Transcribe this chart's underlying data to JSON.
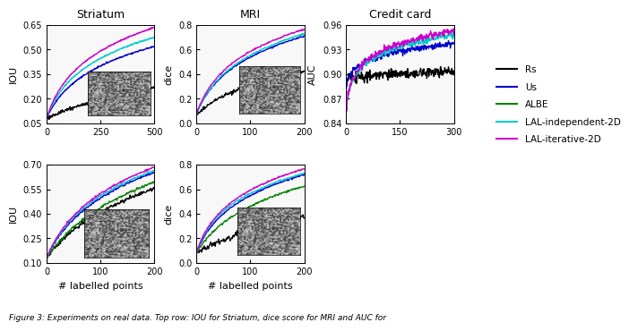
{
  "colors": {
    "Rs": "#000000",
    "Us": "#0000cc",
    "ALBE": "#008000",
    "LAL_independent": "#00cccc",
    "LAL_iterative": "#cc00cc"
  },
  "legend_labels": [
    "Rs",
    "Us",
    "ALBE",
    "LAL-independent-2D",
    "LAL-iterative-2D"
  ],
  "subplot_titles": [
    "Striatum",
    "MRI",
    "Credit card"
  ],
  "top_striatum": {
    "xlim": [
      0,
      500
    ],
    "ylim": [
      0.05,
      0.65
    ],
    "yticks": [
      0.05,
      0.2,
      0.35,
      0.5,
      0.65
    ],
    "xticks": [
      0,
      250,
      500
    ],
    "ylabel": "IOU"
  },
  "top_mri": {
    "xlim": [
      0,
      200
    ],
    "ylim": [
      0.0,
      0.8
    ],
    "yticks": [
      0.0,
      0.2,
      0.4,
      0.6,
      0.8
    ],
    "xticks": [
      0,
      100,
      200
    ],
    "ylabel": "dice"
  },
  "top_credit": {
    "xlim": [
      0,
      300
    ],
    "ylim": [
      0.84,
      0.96
    ],
    "yticks": [
      0.84,
      0.87,
      0.9,
      0.93,
      0.96
    ],
    "xticks": [
      0,
      150,
      300
    ],
    "ylabel": "AUC"
  },
  "bot_striatum": {
    "xlim": [
      0,
      200
    ],
    "ylim": [
      0.1,
      0.7
    ],
    "yticks": [
      0.1,
      0.25,
      0.4,
      0.55,
      0.7
    ],
    "xticks": [
      0,
      100,
      200
    ],
    "ylabel": "IOU",
    "xlabel": "# labelled points"
  },
  "bot_mri": {
    "xlim": [
      0,
      200
    ],
    "ylim": [
      0.0,
      0.8
    ],
    "yticks": [
      0.0,
      0.2,
      0.4,
      0.6,
      0.8
    ],
    "xticks": [
      0,
      100,
      200
    ],
    "ylabel": "dice",
    "xlabel": "# labelled points"
  },
  "lw": 1.0,
  "caption": "Figure 3: Experiments on real data. Top row: IOU for Striatum, dice score for MRI and AUC for"
}
